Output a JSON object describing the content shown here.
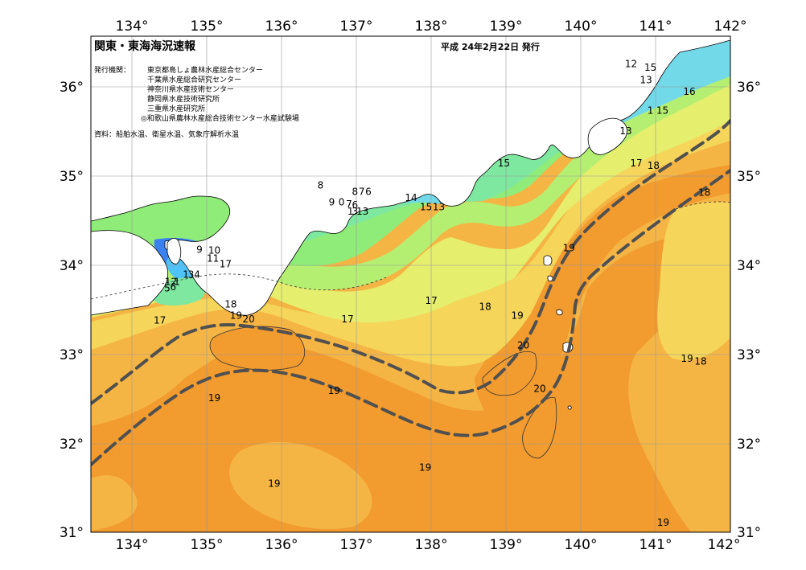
{
  "title": "関東・東海海況速報",
  "issue_date": "平成 24年2月22日 発行",
  "issuers": {
    "label": "発行機関：",
    "items": [
      "東京都島しょ農林水産総合センター",
      "千葉県水産総合研究センター",
      "神奈川県水産技術センター",
      "静岡県水産技術研究所",
      "三重県水産研究所",
      "◎和歌山県農林水産総合技術センター水産試験場"
    ]
  },
  "sources": "資料：船舶水温、衛星水温、気象庁解析水温",
  "axes": {
    "lon_labels": [
      "134°",
      "135°",
      "136°",
      "137°",
      "138°",
      "139°",
      "140°",
      "141°",
      "142°"
    ],
    "lat_labels": [
      "36°",
      "35°",
      "34°",
      "33°",
      "32°",
      "31°"
    ]
  },
  "contour_labels": [
    {
      "text": "12",
      "lon": 140.67,
      "lat": 36.21
    },
    {
      "text": "15",
      "lon": 140.93,
      "lat": 36.17
    },
    {
      "text": "13",
      "lon": 140.87,
      "lat": 36.03
    },
    {
      "text": "16",
      "lon": 141.45,
      "lat": 35.9
    },
    {
      "text": "1",
      "lon": 140.93,
      "lat": 35.69
    },
    {
      "text": "15",
      "lon": 141.09,
      "lat": 35.69
    },
    {
      "text": "13",
      "lon": 140.6,
      "lat": 35.46
    },
    {
      "text": "15",
      "lon": 138.97,
      "lat": 35.1
    },
    {
      "text": "17",
      "lon": 140.74,
      "lat": 35.1
    },
    {
      "text": "18",
      "lon": 140.97,
      "lat": 35.07
    },
    {
      "text": "8",
      "lon": 136.52,
      "lat": 34.85
    },
    {
      "text": "8",
      "lon": 136.98,
      "lat": 34.78
    },
    {
      "text": "7",
      "lon": 137.07,
      "lat": 34.78
    },
    {
      "text": "6",
      "lon": 137.16,
      "lat": 34.78
    },
    {
      "text": "14",
      "lon": 137.73,
      "lat": 34.71
    },
    {
      "text": "18",
      "lon": 141.65,
      "lat": 34.77
    },
    {
      "text": "9",
      "lon": 136.67,
      "lat": 34.66
    },
    {
      "text": "0",
      "lon": 136.8,
      "lat": 34.66
    },
    {
      "text": "7",
      "lon": 136.9,
      "lat": 34.64
    },
    {
      "text": "6",
      "lon": 136.98,
      "lat": 34.63
    },
    {
      "text": "1",
      "lon": 136.92,
      "lat": 34.56
    },
    {
      "text": "3",
      "lon": 136.98,
      "lat": 34.56
    },
    {
      "text": "13",
      "lon": 137.08,
      "lat": 34.56
    },
    {
      "text": "15",
      "lon": 137.93,
      "lat": 34.61
    },
    {
      "text": "13",
      "lon": 138.1,
      "lat": 34.61
    },
    {
      "text": "9",
      "lon": 134.9,
      "lat": 34.13
    },
    {
      "text": "10",
      "lon": 135.1,
      "lat": 34.12
    },
    {
      "text": "11",
      "lon": 135.08,
      "lat": 34.03
    },
    {
      "text": "19",
      "lon": 139.84,
      "lat": 34.15
    },
    {
      "text": "17",
      "lon": 135.25,
      "lat": 33.97
    },
    {
      "text": "1",
      "lon": 134.72,
      "lat": 33.85
    },
    {
      "text": "3",
      "lon": 134.79,
      "lat": 33.85
    },
    {
      "text": "4",
      "lon": 134.87,
      "lat": 33.85
    },
    {
      "text": "12",
      "lon": 134.52,
      "lat": 33.77
    },
    {
      "text": "1",
      "lon": 134.6,
      "lat": 33.77
    },
    {
      "text": "5",
      "lon": 134.47,
      "lat": 33.7
    },
    {
      "text": "6",
      "lon": 134.55,
      "lat": 33.71
    },
    {
      "text": "17",
      "lon": 138.0,
      "lat": 33.56
    },
    {
      "text": "18",
      "lon": 135.32,
      "lat": 33.52
    },
    {
      "text": "18",
      "lon": 138.72,
      "lat": 33.49
    },
    {
      "text": "19",
      "lon": 135.39,
      "lat": 33.39
    },
    {
      "text": "20",
      "lon": 135.56,
      "lat": 33.35
    },
    {
      "text": "17",
      "lon": 134.37,
      "lat": 33.34
    },
    {
      "text": "17",
      "lon": 136.88,
      "lat": 33.35
    },
    {
      "text": "19",
      "lon": 139.15,
      "lat": 33.39
    },
    {
      "text": "20",
      "lon": 139.23,
      "lat": 33.06
    },
    {
      "text": "19",
      "lon": 141.42,
      "lat": 32.91
    },
    {
      "text": "18",
      "lon": 141.6,
      "lat": 32.88
    },
    {
      "text": "19",
      "lon": 136.7,
      "lat": 32.55
    },
    {
      "text": "20",
      "lon": 139.45,
      "lat": 32.57
    },
    {
      "text": "19",
      "lon": 135.1,
      "lat": 32.47
    },
    {
      "text": "19",
      "lon": 137.92,
      "lat": 31.69
    },
    {
      "text": "19",
      "lon": 135.9,
      "lat": 31.51
    },
    {
      "text": "19",
      "lon": 141.1,
      "lat": 31.07
    }
  ],
  "colors": {
    "temp_8": "#2f57c8",
    "temp_9": "#3b82f0",
    "temp_12": "#4fc3f7",
    "temp_13": "#72d9e8",
    "temp_14": "#7ee7a0",
    "temp_15": "#8fec79",
    "temp_16": "#b5ef72",
    "temp_17": "#e6ee6d",
    "temp_18": "#f5d55a",
    "temp_19": "#f5b544",
    "temp_20": "#f29b2f",
    "land": "#ffffff",
    "current": "#505050"
  }
}
